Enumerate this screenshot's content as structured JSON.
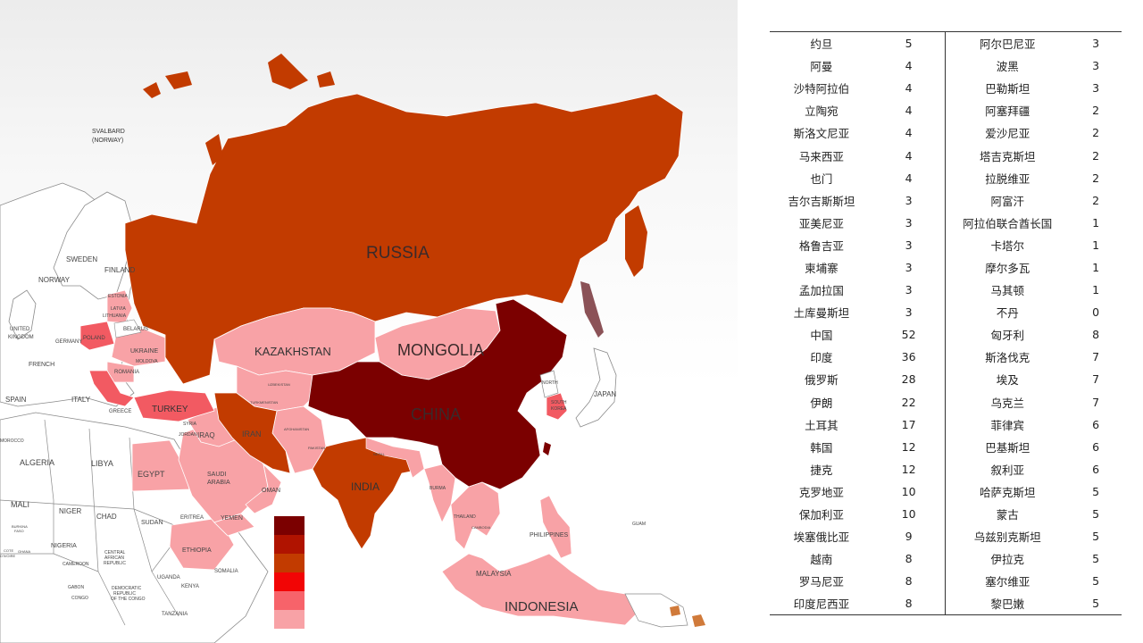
{
  "map": {
    "labels": {
      "svalbard": "SVALBARD",
      "svalbard_sub": "(NORWAY)",
      "sweden": "SWEDEN",
      "finland": "FINLAND",
      "norway": "NORWAY",
      "estonia": "ESTONIA",
      "latvia": "LATVIA",
      "lithuania": "LITHUANIA",
      "belarus": "BELARUS",
      "uk": "UNITED",
      "uk_sub": "KINGDOM",
      "germany": "GERMANY",
      "ukraine": "UKRAINE",
      "poland": "POLAND",
      "moldova": "MOLDOVA",
      "romania": "ROMANIA",
      "french": "FRENCH",
      "spain": "SPAIN",
      "italy": "ITALY",
      "greece": "GREECE",
      "turkey": "TURKEY",
      "russia": "RUSSIA",
      "kazakhstan": "KAZAKHSTAN",
      "mongolia": "MONGOLIA",
      "china": "CHINA",
      "japan": "JAPAN",
      "north_korea": "NORTH",
      "south_korea": "SOUTH",
      "south_korea_sub": "KOREA",
      "uzbekistan": "UZBEKISTAN",
      "turkmenistan": "TURKMENISTAN",
      "afghanistan": "AFGHANISTAN",
      "pakistan": "PAKISTAN",
      "iraq": "IRAQ",
      "iran": "IRAN",
      "syria": "SYRIA",
      "jordan": "JORDAN",
      "saudi": "SAUDI",
      "saudi_sub": "ARABIA",
      "oman": "OMAN",
      "yemen": "YEMEN",
      "india": "INDIA",
      "nepal": "NEPAL",
      "burma": "BURMA",
      "thailand": "THAILAND",
      "cambodia": "CAMBODIA",
      "philippines": "PHILIPPINES",
      "malaysia": "MALAYSIA",
      "indonesia": "INDONESIA",
      "guam": "GUAM",
      "algeria": "ALGERIA",
      "libya": "LIBYA",
      "egypt": "EGYPT",
      "mali": "MALI",
      "niger": "NIGER",
      "chad": "CHAD",
      "sudan": "SUDAN",
      "eritrea": "ERITREA",
      "ethiopia": "ETHIOPIA",
      "somalia": "SOMALIA",
      "nigeria": "NIGERIA",
      "burkina": "BURKINA",
      "burkina_sub": "FASO",
      "cote": "COTE",
      "cote_sub": "D'IVOIRE",
      "ghana": "GHANA",
      "cameroon": "CAMEROON",
      "car": "CENTRAL",
      "car_sub": "AFRICAN",
      "car_sub2": "REPUBLIC",
      "gabon": "GABON",
      "congo": "CONGO",
      "drc": "DEMOCRATIC",
      "drc_sub": "REPUBLIC",
      "drc_sub2": "OF THE CONGO",
      "uganda": "UGANDA",
      "kenya": "KENYA",
      "tanzania": "TANZANIA",
      "morocco": "MOROCCO"
    },
    "colors": {
      "darkest": "#7b0000",
      "dark": "#b01300",
      "orange_red": "#c23b00",
      "red": "#f20505",
      "pink": "#f7636a",
      "light_pink": "#f8a2a6",
      "blank": "#ffffff"
    },
    "legend_colors": [
      "#7b0000",
      "#b01300",
      "#c23b00",
      "#f20505",
      "#f7636a",
      "#f8a2a6"
    ]
  },
  "table": {
    "rows": [
      {
        "c1": "约旦",
        "v1": "5",
        "c2": "阿尔巴尼亚",
        "v2": "3"
      },
      {
        "c1": "阿曼",
        "v1": "4",
        "c2": "波黑",
        "v2": "3"
      },
      {
        "c1": "沙特阿拉伯",
        "v1": "4",
        "c2": "巴勒斯坦",
        "v2": "3"
      },
      {
        "c1": "立陶宛",
        "v1": "4",
        "c2": "阿塞拜疆",
        "v2": "2"
      },
      {
        "c1": "斯洛文尼亚",
        "v1": "4",
        "c2": "爱沙尼亚",
        "v2": "2"
      },
      {
        "c1": "马来西亚",
        "v1": "4",
        "c2": "塔吉克斯坦",
        "v2": "2"
      },
      {
        "c1": "也门",
        "v1": "4",
        "c2": "拉脱维亚",
        "v2": "2"
      },
      {
        "c1": "吉尔吉斯斯坦",
        "v1": "3",
        "c2": "阿富汗",
        "v2": "2"
      },
      {
        "c1": "亚美尼亚",
        "v1": "3",
        "c2": "阿拉伯联合酋长国",
        "v2": "1"
      },
      {
        "c1": "格鲁吉亚",
        "v1": "3",
        "c2": "卡塔尔",
        "v2": "1"
      },
      {
        "c1": "柬埔寨",
        "v1": "3",
        "c2": "摩尔多瓦",
        "v2": "1"
      },
      {
        "c1": "孟加拉国",
        "v1": "3",
        "c2": "马其顿",
        "v2": "1"
      },
      {
        "c1": "土库曼斯坦",
        "v1": "3",
        "c2": "不丹",
        "v2": "0"
      },
      {
        "c1": "中国",
        "v1": "52",
        "c2": "匈牙利",
        "v2": "8"
      },
      {
        "c1": "印度",
        "v1": "36",
        "c2": "斯洛伐克",
        "v2": "7"
      },
      {
        "c1": "俄罗斯",
        "v1": "28",
        "c2": "埃及",
        "v2": "7"
      },
      {
        "c1": "伊朗",
        "v1": "22",
        "c2": "乌克兰",
        "v2": "7"
      },
      {
        "c1": "土耳其",
        "v1": "17",
        "c2": "菲律宾",
        "v2": "6"
      },
      {
        "c1": "韩国",
        "v1": "12",
        "c2": "巴基斯坦",
        "v2": "6"
      },
      {
        "c1": "捷克",
        "v1": "12",
        "c2": "叙利亚",
        "v2": "6"
      },
      {
        "c1": "克罗地亚",
        "v1": "10",
        "c2": "哈萨克斯坦",
        "v2": "5"
      },
      {
        "c1": "保加利亚",
        "v1": "10",
        "c2": "蒙古",
        "v2": "5"
      },
      {
        "c1": "埃塞俄比亚",
        "v1": "9",
        "c2": "乌兹别克斯坦",
        "v2": "5"
      },
      {
        "c1": "越南",
        "v1": "8",
        "c2": "伊拉克",
        "v2": "5"
      },
      {
        "c1": "罗马尼亚",
        "v1": "8",
        "c2": "塞尔维亚",
        "v2": "5"
      },
      {
        "c1": "印度尼西亚",
        "v1": "8",
        "c2": "黎巴嫩",
        "v2": "5"
      }
    ]
  }
}
